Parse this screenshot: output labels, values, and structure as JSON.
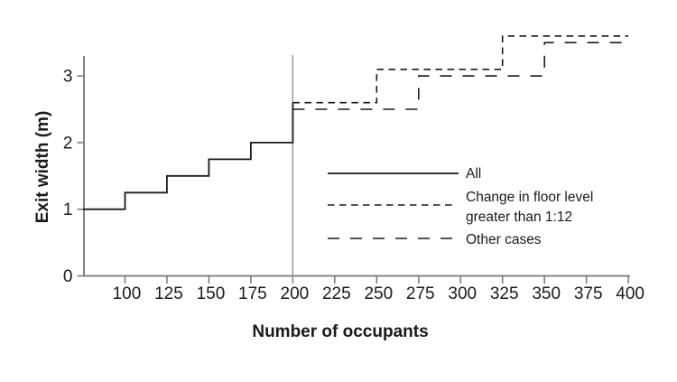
{
  "figure": {
    "background": "#ffffff",
    "axis_color": "#767676",
    "line_color": "#1a1a1a",
    "reference_line_color": "#8f8f8f"
  },
  "chart_data": {
    "type": "line",
    "subtype": "step",
    "title": "",
    "xlabel": "Number of occupants",
    "ylabel": "Exit width (m)",
    "xlim": [
      75,
      401
    ],
    "ylim": [
      0,
      3.3
    ],
    "x_ticks": [
      100,
      125,
      150,
      175,
      200,
      225,
      250,
      275,
      300,
      325,
      350,
      375,
      400
    ],
    "y_ticks": [
      0,
      1,
      2,
      3
    ],
    "grid": false,
    "reference_line_x": 200,
    "legend_position": "inside-lower-right",
    "series": [
      {
        "name": "All",
        "line_style": "solid",
        "points": [
          [
            75,
            1
          ],
          [
            100,
            1
          ],
          [
            100,
            1.25
          ],
          [
            125,
            1.25
          ],
          [
            125,
            1.5
          ],
          [
            150,
            1.5
          ],
          [
            150,
            1.75
          ],
          [
            175,
            1.75
          ],
          [
            175,
            2
          ],
          [
            200,
            2
          ],
          [
            200,
            2.6
          ]
        ]
      },
      {
        "name": "Change in floor level greater than 1:12",
        "line_style": "short-dash",
        "points": [
          [
            200,
            2.6
          ],
          [
            250,
            2.6
          ],
          [
            250,
            3.1
          ],
          [
            325,
            3.1
          ],
          [
            325,
            3.6
          ],
          [
            400,
            3.6
          ]
        ]
      },
      {
        "name": "Other cases",
        "line_style": "long-dash",
        "points": [
          [
            200,
            2.5
          ],
          [
            275,
            2.5
          ],
          [
            275,
            3.0
          ],
          [
            350,
            3.0
          ],
          [
            350,
            3.5
          ],
          [
            400,
            3.5
          ]
        ]
      }
    ]
  },
  "legend": {
    "items": [
      {
        "label": "All",
        "style": "solid"
      },
      {
        "label": "Change in floor level greater than 1:12",
        "label_line1": "Change in floor level",
        "label_line2": "greater than 1:12",
        "style": "short-dash"
      },
      {
        "label": "Other cases",
        "style": "long-dash"
      }
    ]
  }
}
